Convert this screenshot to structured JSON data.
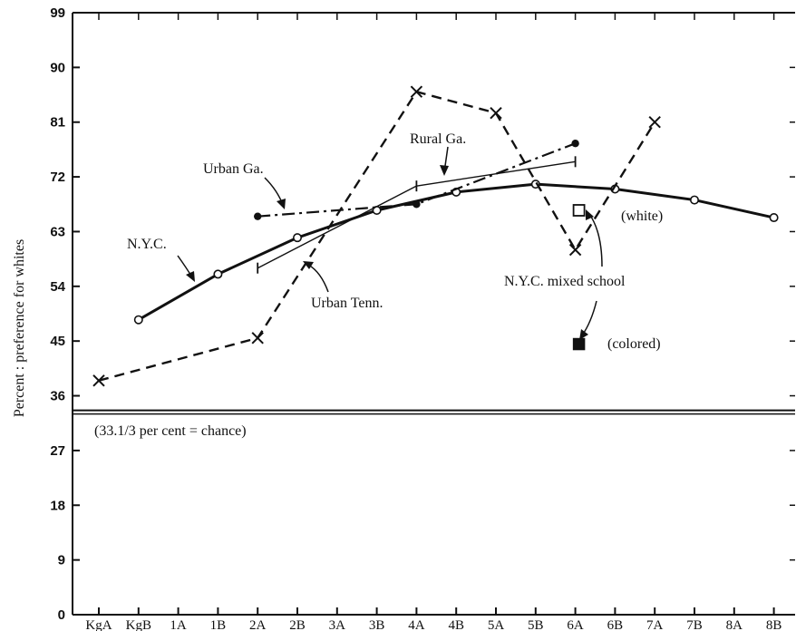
{
  "chart_data": {
    "type": "line",
    "ylabel": "Percent : preference for whites",
    "xlabel": "",
    "ylim": [
      0,
      99
    ],
    "y_ticks": [
      0,
      9,
      18,
      27,
      36,
      45,
      54,
      63,
      72,
      81,
      90,
      99
    ],
    "categories": [
      "KgA",
      "KgB",
      "1A",
      "1B",
      "2A",
      "2B",
      "3A",
      "3B",
      "4A",
      "4B",
      "5A",
      "5B",
      "6A",
      "6B",
      "7A",
      "7B",
      "8A",
      "8B"
    ],
    "category_labels": [
      "KgA",
      "KgB",
      "1A",
      "1B",
      "2A",
      "2B",
      "3A",
      "3B",
      "4A",
      "4B",
      "5A",
      "5B",
      "6A",
      "6B",
      "7A",
      "7B",
      "8A",
      "8B"
    ],
    "chance_level": 33.3,
    "series": [
      {
        "name": "N.Y.C.",
        "style": "solid-thick",
        "color": "#111111",
        "points": [
          [
            "KgB",
            48.5
          ],
          [
            "1B",
            56
          ],
          [
            "2B",
            62
          ],
          [
            "3B",
            66.5
          ],
          [
            "4B",
            69.5
          ],
          [
            "5B",
            70.8
          ],
          [
            "6B",
            70
          ],
          [
            "7B",
            68.2
          ],
          [
            "8B",
            65.3
          ]
        ]
      },
      {
        "name": "Urban Tenn.",
        "style": "dashed",
        "color": "#111111",
        "points": [
          [
            "KgA",
            38.5
          ],
          [
            "2A",
            45.5
          ],
          [
            "4A",
            86
          ],
          [
            "5A",
            82.5
          ],
          [
            "6A",
            60
          ],
          [
            "7A",
            81
          ]
        ]
      },
      {
        "name": "Urban Ga.",
        "style": "dash-dot",
        "color": "#111111",
        "points": [
          [
            "2A",
            65.5
          ],
          [
            "4A",
            67.5
          ],
          [
            "6A",
            77.5
          ]
        ]
      },
      {
        "name": "Rural Ga.",
        "style": "thin",
        "color": "#111111",
        "points": [
          [
            "2A",
            57
          ],
          [
            "4A",
            70.5
          ],
          [
            "6A",
            74.5
          ]
        ]
      }
    ],
    "markers": [
      {
        "label": "N.Y.C. mixed school",
        "sub": "(white)",
        "x": "6A",
        "y": 66.5,
        "shape": "open-square"
      },
      {
        "label": "N.Y.C. mixed school",
        "sub": "(colored)",
        "x": "6A",
        "y": 44.5,
        "shape": "filled-square"
      }
    ],
    "annotations": {
      "rural_ga": "Rural Ga.",
      "urban_ga": "Urban Ga.",
      "nyc": "N.Y.C.",
      "urban_tenn": "Urban Tenn.",
      "nyc_mixed": "N.Y.C. mixed school",
      "white": "(white)",
      "colored": "(colored)",
      "chance": "(33.1/3 per cent = chance)"
    }
  }
}
